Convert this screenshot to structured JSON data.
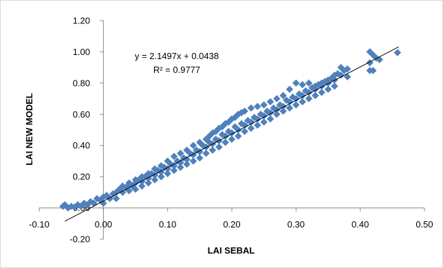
{
  "chart_data": {
    "type": "scatter",
    "title": "",
    "xlabel": "LAI SEBAL",
    "ylabel": "LAI NEW MODEL",
    "xlim": [
      -0.1,
      0.5
    ],
    "ylim": [
      -0.2,
      1.2
    ],
    "xticks": [
      "-0.10",
      "0.00",
      "0.10",
      "0.20",
      "0.30",
      "0.40",
      "0.50"
    ],
    "yticks": [
      "1.20",
      "1.00",
      "0.80",
      "0.60",
      "0.40",
      "0.20",
      "0.00",
      "-0.20"
    ],
    "grid": false,
    "legend": "none",
    "marker_color": "#4f81bd",
    "trendline_color": "#000000",
    "trendline": {
      "slope": 2.1497,
      "intercept": 0.0438,
      "x_range": [
        -0.06,
        0.46
      ]
    },
    "equation_text": "y = 2.1497x + 0.0438",
    "r2_text": "R² = 0.9777",
    "series": [
      {
        "points": [
          [
            -0.063,
            0.01
          ],
          [
            -0.06,
            0.02
          ],
          [
            -0.055,
            0.0
          ],
          [
            -0.05,
            0.01
          ],
          [
            -0.045,
            0.005
          ],
          [
            -0.04,
            0.02
          ],
          [
            -0.035,
            0.01
          ],
          [
            -0.03,
            0.03
          ],
          [
            -0.025,
            0.02
          ],
          [
            -0.02,
            0.04
          ],
          [
            -0.015,
            0.03
          ],
          [
            -0.01,
            0.06
          ],
          [
            -0.005,
            0.05
          ],
          [
            0.0,
            0.07
          ],
          [
            0.0,
            0.03
          ],
          [
            0.005,
            0.08
          ],
          [
            0.01,
            0.06
          ],
          [
            0.015,
            0.09
          ],
          [
            0.02,
            0.1
          ],
          [
            0.02,
            0.06
          ],
          [
            0.025,
            0.12
          ],
          [
            0.03,
            0.1
          ],
          [
            0.035,
            0.13
          ],
          [
            0.04,
            0.11
          ],
          [
            0.04,
            0.15
          ],
          [
            0.045,
            0.14
          ],
          [
            0.05,
            0.16
          ],
          [
            0.05,
            0.12
          ],
          [
            0.055,
            0.18
          ],
          [
            0.06,
            0.17
          ],
          [
            0.06,
            0.14
          ],
          [
            0.065,
            0.2
          ],
          [
            0.07,
            0.19
          ],
          [
            0.07,
            0.16
          ],
          [
            0.075,
            0.22
          ],
          [
            0.08,
            0.21
          ],
          [
            0.08,
            0.18
          ],
          [
            0.085,
            0.24
          ],
          [
            0.09,
            0.23
          ],
          [
            0.09,
            0.2
          ],
          [
            0.095,
            0.26
          ],
          [
            0.1,
            0.25
          ],
          [
            0.1,
            0.22
          ],
          [
            0.105,
            0.28
          ],
          [
            0.11,
            0.27
          ],
          [
            0.11,
            0.24
          ],
          [
            0.115,
            0.3
          ],
          [
            0.12,
            0.29
          ],
          [
            0.12,
            0.26
          ],
          [
            0.125,
            0.32
          ],
          [
            0.13,
            0.31
          ],
          [
            0.13,
            0.28
          ],
          [
            0.135,
            0.35
          ],
          [
            0.14,
            0.34
          ],
          [
            0.14,
            0.3
          ],
          [
            0.145,
            0.37
          ],
          [
            0.15,
            0.36
          ],
          [
            0.15,
            0.32
          ],
          [
            0.155,
            0.4
          ],
          [
            0.16,
            0.39
          ],
          [
            0.16,
            0.35
          ],
          [
            0.165,
            0.42
          ],
          [
            0.17,
            0.41
          ],
          [
            0.17,
            0.37
          ],
          [
            0.175,
            0.44
          ],
          [
            0.18,
            0.43
          ],
          [
            0.18,
            0.39
          ],
          [
            0.185,
            0.47
          ],
          [
            0.19,
            0.46
          ],
          [
            0.19,
            0.42
          ],
          [
            0.195,
            0.49
          ],
          [
            0.2,
            0.48
          ],
          [
            0.2,
            0.44
          ],
          [
            0.205,
            0.52
          ],
          [
            0.21,
            0.5
          ],
          [
            0.21,
            0.46
          ],
          [
            0.215,
            0.54
          ],
          [
            0.22,
            0.53
          ],
          [
            0.22,
            0.49
          ],
          [
            0.225,
            0.56
          ],
          [
            0.23,
            0.55
          ],
          [
            0.23,
            0.51
          ],
          [
            0.235,
            0.58
          ],
          [
            0.24,
            0.57
          ],
          [
            0.24,
            0.53
          ],
          [
            0.245,
            0.6
          ],
          [
            0.25,
            0.59
          ],
          [
            0.25,
            0.55
          ],
          [
            0.255,
            0.62
          ],
          [
            0.26,
            0.61
          ],
          [
            0.26,
            0.57
          ],
          [
            0.265,
            0.64
          ],
          [
            0.27,
            0.63
          ],
          [
            0.27,
            0.6
          ],
          [
            0.275,
            0.66
          ],
          [
            0.28,
            0.65
          ],
          [
            0.28,
            0.62
          ],
          [
            0.285,
            0.69
          ],
          [
            0.29,
            0.68
          ],
          [
            0.29,
            0.64
          ],
          [
            0.295,
            0.71
          ],
          [
            0.3,
            0.7
          ],
          [
            0.3,
            0.66
          ],
          [
            0.305,
            0.73
          ],
          [
            0.31,
            0.72
          ],
          [
            0.31,
            0.68
          ],
          [
            0.315,
            0.75
          ],
          [
            0.32,
            0.74
          ],
          [
            0.32,
            0.7
          ],
          [
            0.325,
            0.77
          ],
          [
            0.33,
            0.76
          ],
          [
            0.33,
            0.72
          ],
          [
            0.335,
            0.79
          ],
          [
            0.34,
            0.78
          ],
          [
            0.34,
            0.74
          ],
          [
            0.345,
            0.81
          ],
          [
            0.35,
            0.8
          ],
          [
            0.35,
            0.76
          ],
          [
            0.355,
            0.83
          ],
          [
            0.36,
            0.82
          ],
          [
            0.36,
            0.78
          ],
          [
            0.365,
            0.86
          ],
          [
            0.37,
            0.85
          ],
          [
            0.37,
            0.9
          ],
          [
            0.375,
            0.88
          ],
          [
            0.38,
            0.89
          ],
          [
            0.38,
            0.84
          ],
          [
            0.16,
            0.44
          ],
          [
            0.165,
            0.46
          ],
          [
            0.17,
            0.48
          ],
          [
            0.175,
            0.49
          ],
          [
            0.18,
            0.51
          ],
          [
            0.185,
            0.52
          ],
          [
            0.19,
            0.54
          ],
          [
            0.195,
            0.55
          ],
          [
            0.2,
            0.57
          ],
          [
            0.205,
            0.58
          ],
          [
            0.21,
            0.6
          ],
          [
            0.215,
            0.61
          ],
          [
            0.22,
            0.62
          ],
          [
            0.23,
            0.64
          ],
          [
            0.24,
            0.65
          ],
          [
            0.25,
            0.66
          ],
          [
            0.26,
            0.68
          ],
          [
            0.27,
            0.7
          ],
          [
            0.28,
            0.72
          ],
          [
            0.29,
            0.76
          ],
          [
            0.3,
            0.8
          ],
          [
            0.31,
            0.79
          ],
          [
            0.32,
            0.8
          ],
          [
            0.33,
            0.78
          ],
          [
            0.34,
            0.8
          ],
          [
            0.35,
            0.82
          ],
          [
            0.36,
            0.85
          ],
          [
            0.11,
            0.33
          ],
          [
            0.12,
            0.35
          ],
          [
            0.13,
            0.37
          ],
          [
            0.14,
            0.4
          ],
          [
            0.15,
            0.42
          ],
          [
            0.1,
            0.3
          ],
          [
            0.09,
            0.27
          ],
          [
            0.08,
            0.25
          ],
          [
            0.07,
            0.22
          ],
          [
            0.06,
            0.2
          ],
          [
            0.05,
            0.18
          ],
          [
            0.04,
            0.16
          ],
          [
            0.03,
            0.14
          ],
          [
            0.415,
            1.0
          ],
          [
            0.42,
            0.98
          ],
          [
            0.425,
            0.96
          ],
          [
            0.415,
            0.93
          ],
          [
            0.42,
            0.88
          ],
          [
            0.415,
            0.88
          ],
          [
            0.458,
            0.995
          ],
          [
            0.43,
            0.95
          ]
        ]
      }
    ]
  }
}
